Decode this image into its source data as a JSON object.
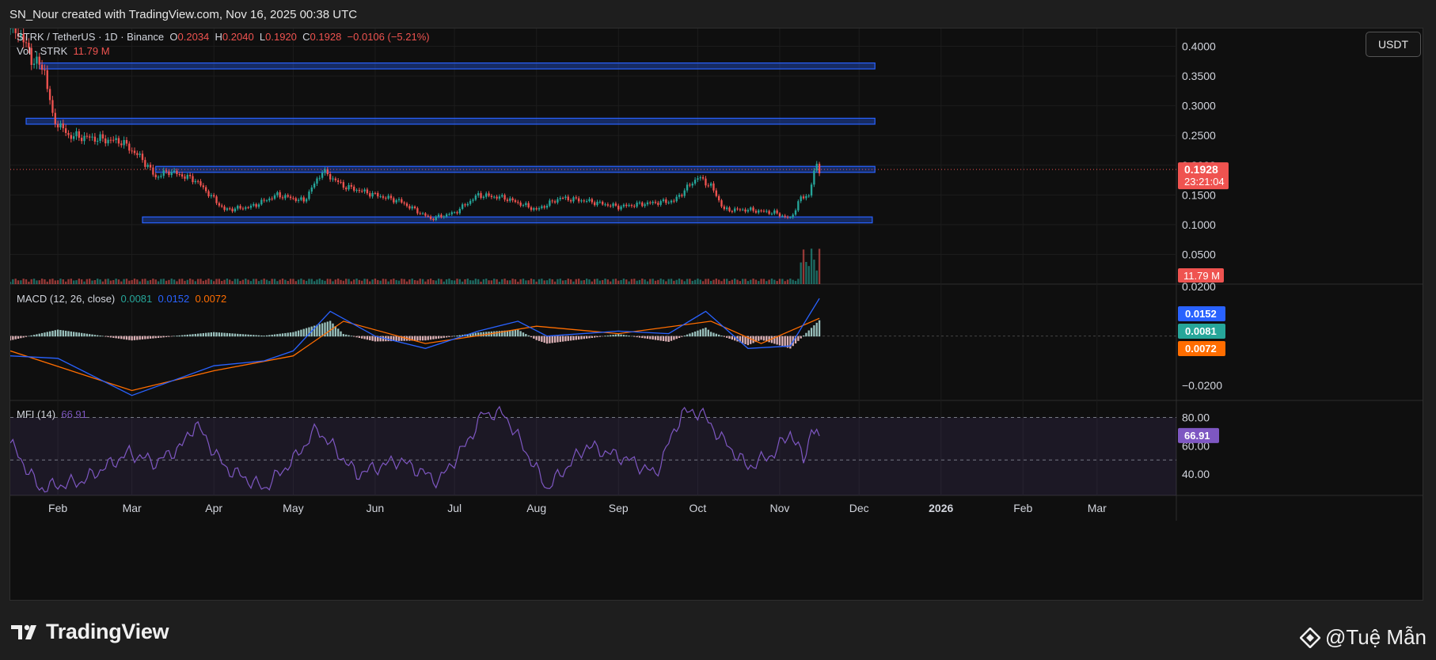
{
  "caption": "SN_Nour created with TradingView.com, Nov 16, 2025 00:38 UTC",
  "currency_button": "USDT",
  "footer": {
    "brand": "TradingView",
    "author": "@Tuệ Mẫn"
  },
  "colors": {
    "up": "#26a69a",
    "down": "#ef5350",
    "zone": "#2962ff",
    "macd": "#2962ff",
    "signal": "#ff6d00",
    "mfi": "#7e57c2"
  },
  "chart_data": [
    {
      "type": "candlestick",
      "title": "STRK / TetherUS · 1D · Binance",
      "ohlc": {
        "O": "O",
        "o_val": "0.2034",
        "H": "H",
        "h_val": "0.2040",
        "L": "L",
        "l_val": "0.1920",
        "C": "C",
        "c_val": "0.1928",
        "change": "−0.0106 (−5.21%)"
      },
      "volume_label": "Vol · STRK",
      "volume_value": "11.79 M",
      "ylim": [
        0.0,
        0.43
      ],
      "y_ticks": [
        "0.4000",
        "0.3500",
        "0.3000",
        "0.2500",
        "0.2000",
        "0.1500",
        "0.1000",
        "0.0500"
      ],
      "x_ticks": [
        "Feb",
        "Mar",
        "Apr",
        "May",
        "Jun",
        "Jul",
        "Aug",
        "Sep",
        "Oct",
        "Nov",
        "Dec",
        "2026",
        "Feb",
        "Mar"
      ],
      "last_price": "0.1928",
      "countdown": "23:21:04",
      "last_volume": "11.79 M",
      "zones": [
        {
          "from": "2025-01-25",
          "to": "2025-12-07",
          "low": 0.362,
          "high": 0.372
        },
        {
          "from": "2025-01-20",
          "to": "2025-12-07",
          "low": 0.269,
          "high": 0.279
        },
        {
          "from": "2025-03-10",
          "to": "2025-12-07",
          "low": 0.188,
          "high": 0.198
        },
        {
          "from": "2025-03-05",
          "to": "2025-12-06",
          "low": 0.103,
          "high": 0.113
        }
      ],
      "close_series": [
        {
          "date": "2025-01-14",
          "close": 0.43
        },
        {
          "date": "2025-01-18",
          "close": 0.42
        },
        {
          "date": "2025-01-22",
          "close": 0.38
        },
        {
          "date": "2025-01-27",
          "close": 0.36
        },
        {
          "date": "2025-01-30",
          "close": 0.28
        },
        {
          "date": "2025-02-05",
          "close": 0.25
        },
        {
          "date": "2025-02-15",
          "close": 0.245
        },
        {
          "date": "2025-02-25",
          "close": 0.24
        },
        {
          "date": "2025-03-05",
          "close": 0.21
        },
        {
          "date": "2025-03-10",
          "close": 0.18
        },
        {
          "date": "2025-03-15",
          "close": 0.19
        },
        {
          "date": "2025-03-25",
          "close": 0.175
        },
        {
          "date": "2025-04-05",
          "close": 0.125
        },
        {
          "date": "2025-04-15",
          "close": 0.13
        },
        {
          "date": "2025-04-25",
          "close": 0.15
        },
        {
          "date": "2025-05-05",
          "close": 0.14
        },
        {
          "date": "2025-05-12",
          "close": 0.19
        },
        {
          "date": "2025-05-20",
          "close": 0.165
        },
        {
          "date": "2025-06-01",
          "close": 0.15
        },
        {
          "date": "2025-06-10",
          "close": 0.14
        },
        {
          "date": "2025-06-22",
          "close": 0.11
        },
        {
          "date": "2025-07-01",
          "close": 0.12
        },
        {
          "date": "2025-07-10",
          "close": 0.15
        },
        {
          "date": "2025-07-20",
          "close": 0.145
        },
        {
          "date": "2025-08-01",
          "close": 0.125
        },
        {
          "date": "2025-08-10",
          "close": 0.145
        },
        {
          "date": "2025-08-20",
          "close": 0.14
        },
        {
          "date": "2025-09-01",
          "close": 0.13
        },
        {
          "date": "2025-09-10",
          "close": 0.135
        },
        {
          "date": "2025-09-22",
          "close": 0.14
        },
        {
          "date": "2025-10-01",
          "close": 0.18
        },
        {
          "date": "2025-10-06",
          "close": 0.165
        },
        {
          "date": "2025-10-11",
          "close": 0.125
        },
        {
          "date": "2025-10-20",
          "close": 0.125
        },
        {
          "date": "2025-10-30",
          "close": 0.12
        },
        {
          "date": "2025-11-05",
          "close": 0.11
        },
        {
          "date": "2025-11-09",
          "close": 0.145
        },
        {
          "date": "2025-11-12",
          "close": 0.15
        },
        {
          "date": "2025-11-15",
          "close": 0.2034
        },
        {
          "date": "2025-11-16",
          "close": 0.1928
        }
      ]
    },
    {
      "type": "line",
      "title": "MACD (12, 26, close)",
      "values_text": {
        "hist": "0.0081",
        "macd": "0.0152",
        "signal": "0.0072"
      },
      "ylim": [
        -0.026,
        0.021
      ],
      "y_ticks": [
        "0.0200",
        "−0.0200"
      ],
      "series": [
        {
          "name": "MACD",
          "values": [
            {
              "date": "2025-01-14",
              "v": -0.008
            },
            {
              "date": "2025-02-01",
              "v": -0.009
            },
            {
              "date": "2025-03-01",
              "v": -0.024
            },
            {
              "date": "2025-04-01",
              "v": -0.012
            },
            {
              "date": "2025-04-20",
              "v": -0.01
            },
            {
              "date": "2025-05-01",
              "v": -0.006
            },
            {
              "date": "2025-05-15",
              "v": 0.01
            },
            {
              "date": "2025-06-01",
              "v": 0.0
            },
            {
              "date": "2025-06-20",
              "v": -0.005
            },
            {
              "date": "2025-07-10",
              "v": 0.002
            },
            {
              "date": "2025-07-25",
              "v": 0.006
            },
            {
              "date": "2025-08-05",
              "v": 0.0
            },
            {
              "date": "2025-09-01",
              "v": 0.002
            },
            {
              "date": "2025-09-20",
              "v": 0.001
            },
            {
              "date": "2025-10-04",
              "v": 0.01
            },
            {
              "date": "2025-10-20",
              "v": -0.005
            },
            {
              "date": "2025-11-05",
              "v": -0.004
            },
            {
              "date": "2025-11-16",
              "v": 0.0152
            }
          ]
        },
        {
          "name": "Signal",
          "values": [
            {
              "date": "2025-01-14",
              "v": -0.006
            },
            {
              "date": "2025-03-01",
              "v": -0.022
            },
            {
              "date": "2025-04-01",
              "v": -0.014
            },
            {
              "date": "2025-05-01",
              "v": -0.008
            },
            {
              "date": "2025-05-20",
              "v": 0.006
            },
            {
              "date": "2025-06-20",
              "v": -0.003
            },
            {
              "date": "2025-07-15",
              "v": 0.001
            },
            {
              "date": "2025-08-01",
              "v": 0.004
            },
            {
              "date": "2025-09-01",
              "v": 0.001
            },
            {
              "date": "2025-10-06",
              "v": 0.006
            },
            {
              "date": "2025-10-25",
              "v": -0.003
            },
            {
              "date": "2025-11-16",
              "v": 0.0072
            }
          ]
        }
      ]
    },
    {
      "type": "line",
      "title": "MFI (14)",
      "value": "66.91",
      "ylim": [
        25,
        92
      ],
      "y_ticks": [
        "80.00",
        "60.00",
        "40.00"
      ],
      "bands": [
        20,
        50,
        80
      ],
      "series": [
        {
          "name": "MFI",
          "values": [
            {
              "date": "2025-01-14",
              "v": 62
            },
            {
              "date": "2025-01-25",
              "v": 30
            },
            {
              "date": "2025-02-10",
              "v": 35
            },
            {
              "date": "2025-02-28",
              "v": 55
            },
            {
              "date": "2025-03-10",
              "v": 48
            },
            {
              "date": "2025-03-20",
              "v": 60
            },
            {
              "date": "2025-03-25",
              "v": 76
            },
            {
              "date": "2025-04-05",
              "v": 45
            },
            {
              "date": "2025-04-20",
              "v": 30
            },
            {
              "date": "2025-05-01",
              "v": 50
            },
            {
              "date": "2025-05-10",
              "v": 72
            },
            {
              "date": "2025-05-25",
              "v": 40
            },
            {
              "date": "2025-06-10",
              "v": 50
            },
            {
              "date": "2025-06-25",
              "v": 35
            },
            {
              "date": "2025-07-05",
              "v": 60
            },
            {
              "date": "2025-07-12",
              "v": 83
            },
            {
              "date": "2025-07-20",
              "v": 82
            },
            {
              "date": "2025-08-05",
              "v": 30
            },
            {
              "date": "2025-08-20",
              "v": 60
            },
            {
              "date": "2025-09-05",
              "v": 50
            },
            {
              "date": "2025-09-15",
              "v": 40
            },
            {
              "date": "2025-09-25",
              "v": 83
            },
            {
              "date": "2025-10-02",
              "v": 84
            },
            {
              "date": "2025-10-10",
              "v": 65
            },
            {
              "date": "2025-10-20",
              "v": 45
            },
            {
              "date": "2025-10-30",
              "v": 55
            },
            {
              "date": "2025-11-05",
              "v": 70
            },
            {
              "date": "2025-11-10",
              "v": 50
            },
            {
              "date": "2025-11-13",
              "v": 72
            },
            {
              "date": "2025-11-16",
              "v": 66.91
            }
          ]
        }
      ]
    }
  ]
}
